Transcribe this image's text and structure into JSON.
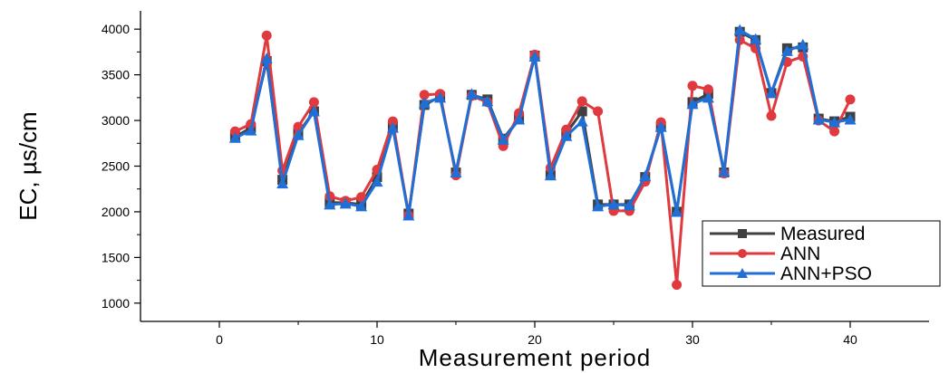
{
  "chart_data": {
    "type": "line",
    "title": "",
    "xlabel": "Measurement period",
    "ylabel": "EC, µs/cm",
    "xlim": [
      -5,
      45
    ],
    "ylim": [
      800,
      4200
    ],
    "xticks": [
      0,
      10,
      20,
      30,
      40
    ],
    "yticks": [
      1000,
      1500,
      2000,
      2500,
      3000,
      3500,
      4000
    ],
    "grid": false,
    "legend_position": "bottom-right",
    "x": [
      1,
      2,
      3,
      4,
      5,
      6,
      7,
      8,
      9,
      10,
      11,
      12,
      13,
      14,
      15,
      16,
      17,
      18,
      19,
      20,
      21,
      22,
      23,
      24,
      25,
      26,
      27,
      28,
      29,
      30,
      31,
      32,
      33,
      34,
      35,
      36,
      37,
      38,
      39,
      40
    ],
    "series": [
      {
        "name": "Measured",
        "color": "#404040",
        "marker": "square",
        "values": [
          2820,
          2920,
          3650,
          2350,
          2860,
          3100,
          2100,
          2100,
          2080,
          2380,
          2930,
          1980,
          3170,
          3260,
          2430,
          3280,
          3230,
          2800,
          3020,
          3710,
          2400,
          2860,
          3100,
          2080,
          2080,
          2080,
          2380,
          2930,
          2000,
          3200,
          3290,
          2430,
          3970,
          3880,
          3300,
          3790,
          3800,
          3020,
          2990,
          3040
        ]
      },
      {
        "name": "ANN",
        "color": "#e0393e",
        "marker": "circle",
        "values": [
          2880,
          2960,
          3930,
          2450,
          2930,
          3200,
          2170,
          2120,
          2160,
          2460,
          2990,
          1960,
          3280,
          3290,
          2400,
          3270,
          3200,
          2720,
          3080,
          3720,
          2480,
          2900,
          3210,
          3100,
          2010,
          2010,
          2330,
          2980,
          1200,
          3380,
          3340,
          2420,
          3880,
          3790,
          3050,
          3640,
          3700,
          3000,
          2880,
          3230
        ]
      },
      {
        "name": "ANN+PSO",
        "color": "#1f6fd6",
        "marker": "triangle",
        "values": [
          2810,
          2890,
          3680,
          2310,
          2840,
          3100,
          2080,
          2090,
          2060,
          2330,
          2920,
          1960,
          3190,
          3250,
          2430,
          3290,
          3210,
          2790,
          3010,
          3700,
          2400,
          2830,
          2990,
          2060,
          2080,
          2070,
          2390,
          2930,
          2000,
          3180,
          3250,
          2440,
          3990,
          3890,
          3300,
          3760,
          3830,
          3010,
          2980,
          3010
        ]
      }
    ]
  }
}
